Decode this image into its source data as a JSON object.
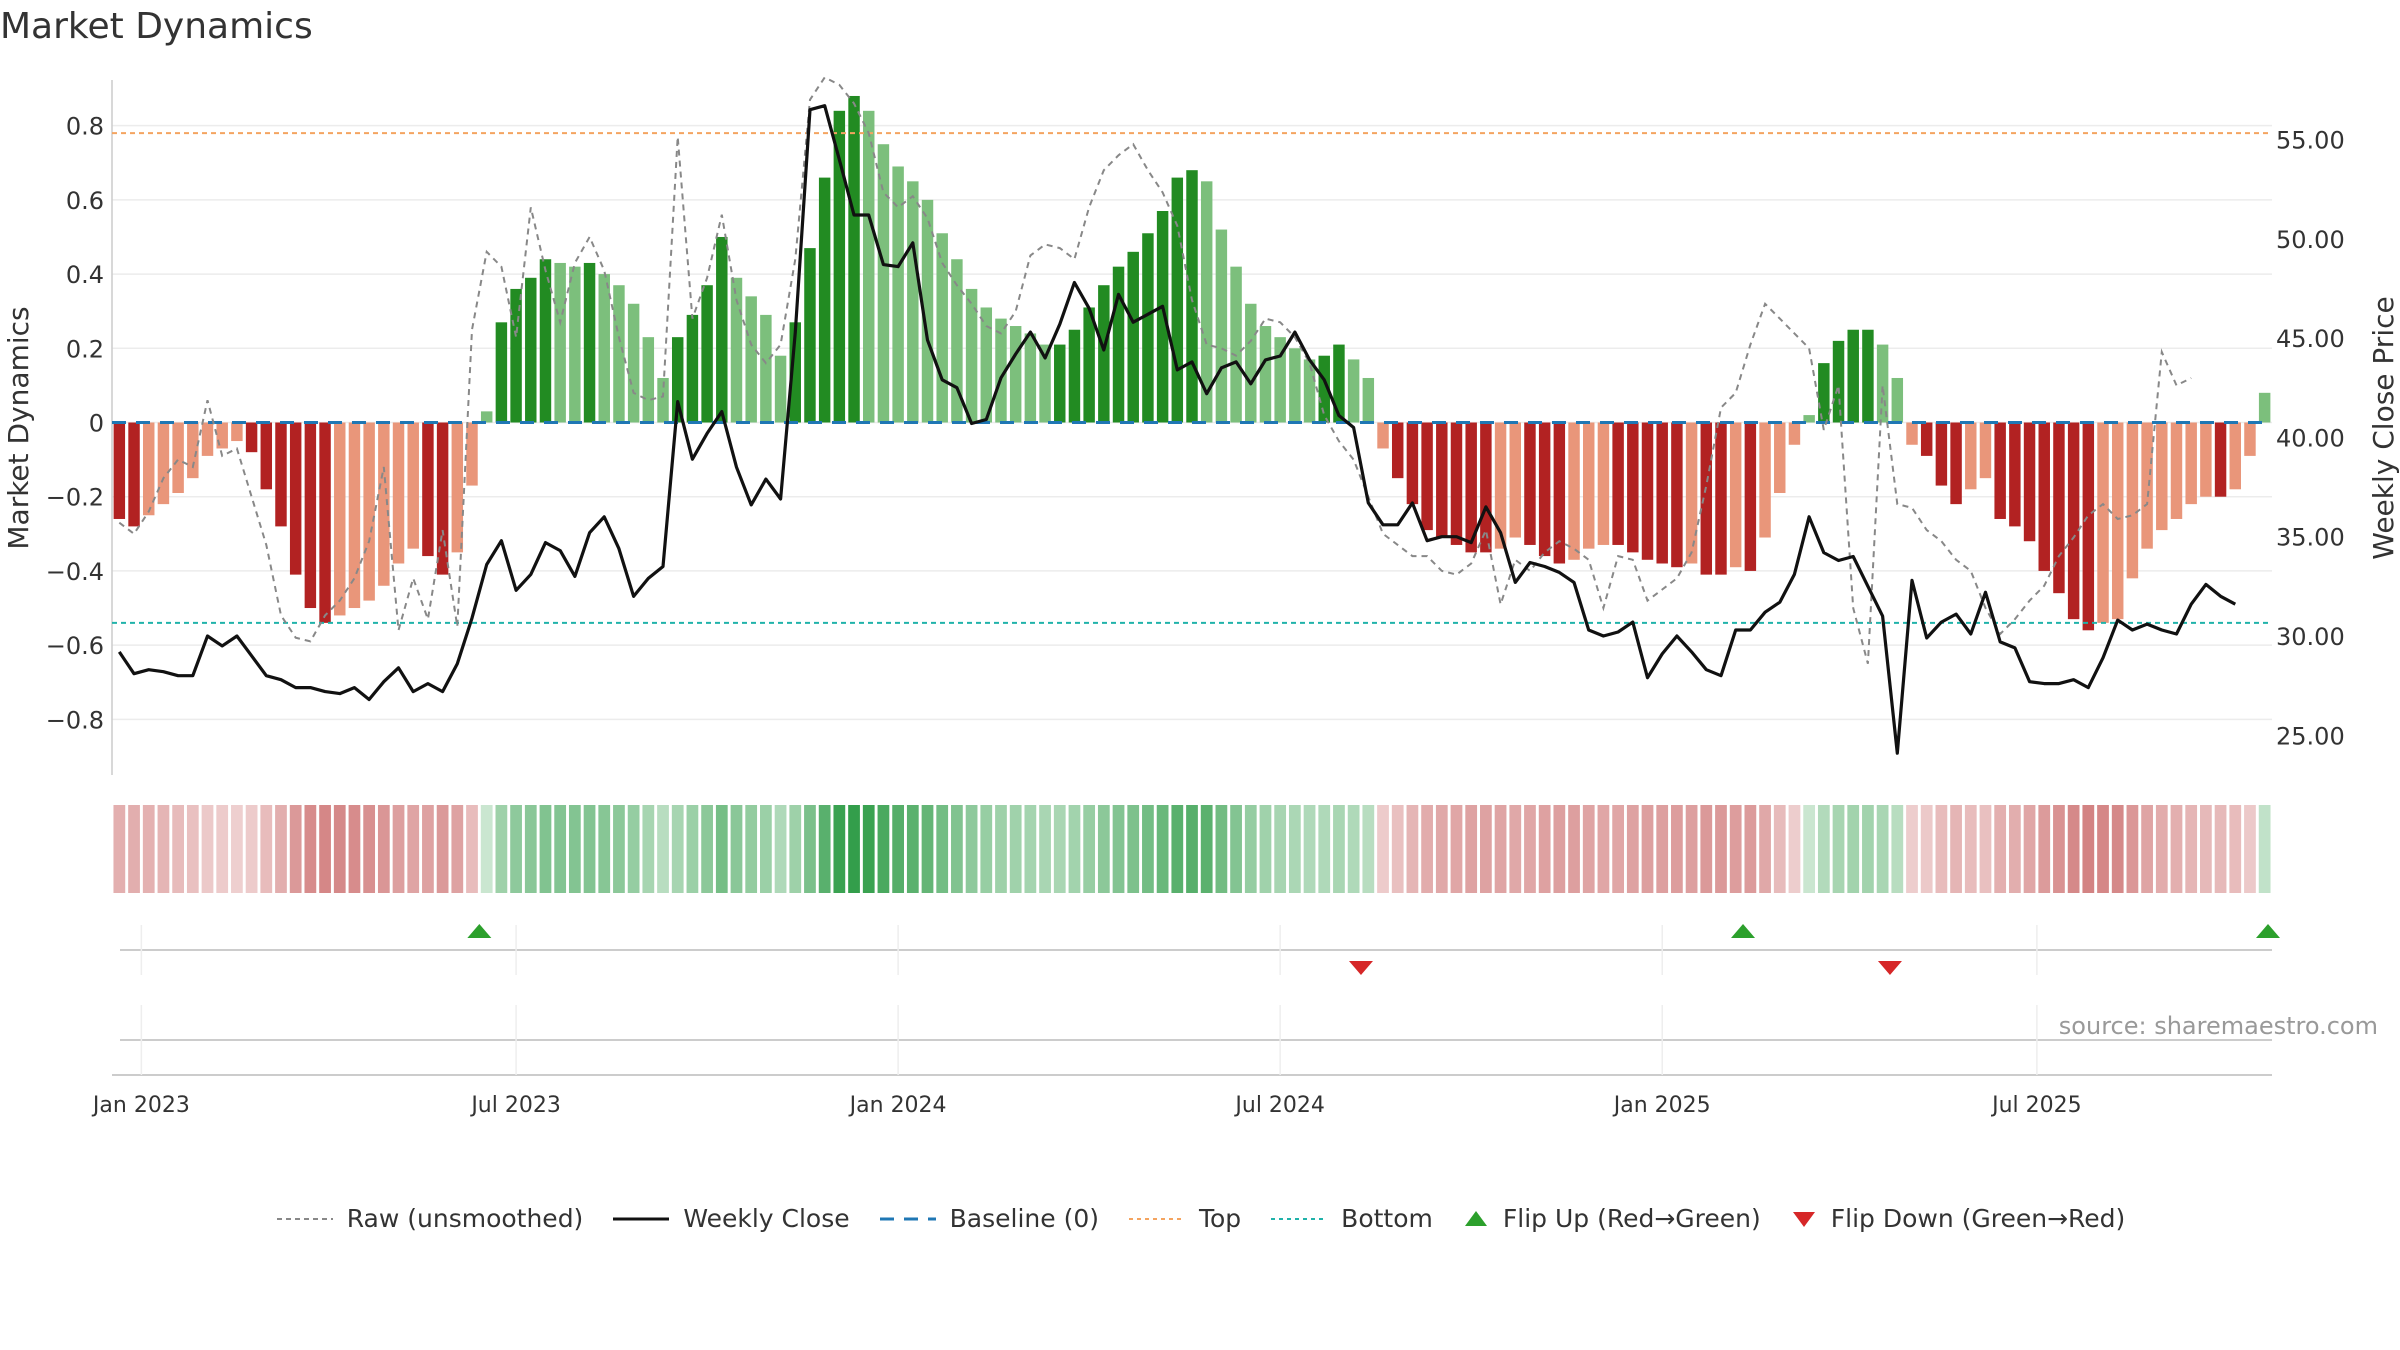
{
  "title": "Market Dynamics",
  "source": "source: sharemaestro.com",
  "colors": {
    "strong_green": "#228B22",
    "light_green": "#7CBF7C",
    "strong_red": "#B22222",
    "light_red": "#E9967A",
    "raw_line": "#888888",
    "close_line": "#111111",
    "baseline": "#1f77b4",
    "top_line": "#F4A460",
    "bottom_line": "#20B2AA",
    "flip_up": "#2ca02c",
    "flip_down": "#d62728"
  },
  "legend": {
    "raw": "Raw (unsmoothed)",
    "close": "Weekly Close",
    "baseline": "Baseline (0)",
    "top": "Top",
    "bottom": "Bottom",
    "flip_up": "Flip Up (Red→Green)",
    "flip_down": "Flip Down (Green→Red)"
  },
  "chart_data": {
    "type": "bar",
    "ylabel": "Market Dynamics",
    "y2label": "Weekly Close Price",
    "ylim": [
      -0.95,
      0.95
    ],
    "y2lim": [
      23.0,
      58.5
    ],
    "yticks": [
      "0.8",
      "0.6",
      "0.4",
      "0.2",
      "0",
      "−0.2",
      "−0.4",
      "−0.6",
      "−0.8"
    ],
    "ytick_values": [
      0.8,
      0.6,
      0.4,
      0.2,
      0,
      -0.2,
      -0.4,
      -0.6,
      -0.8
    ],
    "y2ticks": [
      "55.00",
      "50.00",
      "45.00",
      "40.00",
      "35.00",
      "30.00",
      "25.00"
    ],
    "y2tick_values": [
      55,
      50,
      45,
      40,
      35,
      30,
      25
    ],
    "xticks": [
      "Jan 2023",
      "Jul 2023",
      "Jan 2024",
      "Jul 2024",
      "Jan 2025",
      "Jul 2025"
    ],
    "xtick_weeks": [
      2,
      27.5,
      53.5,
      79.5,
      105.5,
      131
    ],
    "top": 0.78,
    "bottom": -0.54,
    "baseline": 0,
    "start_date": "2023-01-02",
    "weekly_values": [
      -0.26,
      -0.28,
      -0.25,
      -0.22,
      -0.19,
      -0.15,
      -0.09,
      -0.07,
      -0.05,
      -0.08,
      -0.18,
      -0.28,
      -0.41,
      -0.5,
      -0.54,
      -0.52,
      -0.5,
      -0.48,
      -0.44,
      -0.38,
      -0.34,
      -0.36,
      -0.41,
      -0.35,
      -0.17,
      0.03,
      0.27,
      0.36,
      0.39,
      0.44,
      0.43,
      0.42,
      0.43,
      0.4,
      0.37,
      0.32,
      0.23,
      0.12,
      0.23,
      0.29,
      0.37,
      0.5,
      0.39,
      0.34,
      0.29,
      0.18,
      0.27,
      0.47,
      0.66,
      0.84,
      0.88,
      0.84,
      0.75,
      0.69,
      0.65,
      0.6,
      0.51,
      0.44,
      0.36,
      0.31,
      0.28,
      0.26,
      0.24,
      0.21,
      0.21,
      0.25,
      0.31,
      0.37,
      0.42,
      0.46,
      0.51,
      0.57,
      0.66,
      0.68,
      0.65,
      0.52,
      0.42,
      0.32,
      0.26,
      0.23,
      0.2,
      0.17,
      0.18,
      0.21,
      0.17,
      0.12,
      -0.07,
      -0.15,
      -0.22,
      -0.29,
      -0.31,
      -0.33,
      -0.35,
      -0.35,
      -0.34,
      -0.31,
      -0.33,
      -0.36,
      -0.38,
      -0.37,
      -0.34,
      -0.33,
      -0.33,
      -0.35,
      -0.37,
      -0.38,
      -0.39,
      -0.38,
      -0.41,
      -0.41,
      -0.39,
      -0.4,
      -0.31,
      -0.19,
      -0.06,
      0.02,
      0.16,
      0.22,
      0.25,
      0.25,
      0.21,
      0.12,
      -0.06,
      -0.09,
      -0.17,
      -0.22,
      -0.18,
      -0.15,
      -0.26,
      -0.28,
      -0.32,
      -0.4,
      -0.46,
      -0.53,
      -0.56,
      -0.54,
      -0.53,
      -0.42,
      -0.34,
      -0.29,
      -0.26,
      -0.22,
      -0.2,
      -0.2,
      -0.18,
      -0.09,
      0.08
    ],
    "raw_values": [
      -0.27,
      -0.3,
      -0.24,
      -0.15,
      -0.1,
      -0.12,
      0.06,
      -0.09,
      -0.07,
      -0.2,
      -0.33,
      -0.52,
      -0.58,
      -0.59,
      -0.52,
      -0.48,
      -0.42,
      -0.32,
      -0.12,
      -0.56,
      -0.42,
      -0.53,
      -0.29,
      -0.55,
      0.25,
      0.46,
      0.42,
      0.23,
      0.58,
      0.41,
      0.27,
      0.43,
      0.5,
      0.41,
      0.23,
      0.08,
      0.06,
      0.07,
      0.77,
      0.28,
      0.39,
      0.56,
      0.33,
      0.21,
      0.16,
      0.21,
      0.44,
      0.87,
      0.93,
      0.91,
      0.86,
      0.78,
      0.62,
      0.58,
      0.61,
      0.55,
      0.43,
      0.37,
      0.32,
      0.26,
      0.24,
      0.3,
      0.45,
      0.48,
      0.47,
      0.44,
      0.58,
      0.68,
      0.72,
      0.75,
      0.68,
      0.62,
      0.53,
      0.33,
      0.21,
      0.2,
      0.18,
      0.22,
      0.28,
      0.27,
      0.23,
      0.16,
      0.02,
      -0.05,
      -0.1,
      -0.2,
      -0.3,
      -0.33,
      -0.36,
      -0.36,
      -0.4,
      -0.41,
      -0.38,
      -0.29,
      -0.49,
      -0.37,
      -0.4,
      -0.35,
      -0.32,
      -0.34,
      -0.37,
      -0.5,
      -0.36,
      -0.37,
      -0.48,
      -0.45,
      -0.42,
      -0.35,
      -0.17,
      0.04,
      0.08,
      0.21,
      0.32,
      0.28,
      0.24,
      0.2,
      -0.02,
      0.1,
      -0.5,
      -0.65,
      0.1,
      -0.22,
      -0.23,
      -0.29,
      -0.32,
      -0.37,
      -0.4,
      -0.5,
      -0.57,
      -0.53,
      -0.48,
      -0.44,
      -0.36,
      -0.31,
      -0.25,
      -0.22,
      -0.26,
      -0.25,
      -0.22,
      0.19,
      0.1,
      0.12
    ],
    "close_values": [
      29.2,
      28.1,
      28.3,
      28.2,
      28.0,
      28.0,
      30.0,
      29.5,
      30.0,
      29.0,
      28.0,
      27.8,
      27.4,
      27.4,
      27.2,
      27.1,
      27.4,
      26.8,
      27.7,
      28.4,
      27.2,
      27.6,
      27.2,
      28.6,
      30.9,
      33.6,
      34.8,
      32.3,
      33.1,
      34.7,
      34.3,
      33.0,
      35.2,
      36.0,
      34.4,
      32.0,
      32.9,
      33.5,
      41.8,
      38.9,
      40.2,
      41.3,
      38.5,
      36.6,
      37.9,
      36.9,
      45.3,
      56.5,
      56.7,
      54.0,
      51.2,
      51.2,
      48.7,
      48.6,
      49.8,
      44.9,
      42.9,
      42.5,
      40.7,
      40.9,
      43.0,
      44.2,
      45.3,
      44.0,
      45.7,
      47.8,
      46.5,
      44.4,
      47.2,
      45.8,
      46.2,
      46.6,
      43.4,
      43.8,
      42.2,
      43.5,
      43.8,
      42.7,
      43.9,
      44.1,
      45.3,
      43.9,
      42.9,
      41.1,
      40.5,
      36.7,
      35.6,
      35.6,
      36.7,
      34.8,
      35.0,
      35.0,
      34.7,
      36.5,
      35.2,
      32.7,
      33.7,
      33.5,
      33.2,
      32.7,
      30.3,
      30.0,
      30.2,
      30.7,
      27.9,
      29.1,
      30.0,
      29.2,
      28.3,
      28.0,
      30.3,
      30.3,
      31.2,
      31.7,
      33.1,
      36.0,
      34.2,
      33.8,
      34.0,
      32.5,
      31.0,
      24.1,
      32.8,
      29.9,
      30.7,
      31.1,
      30.1,
      32.2,
      29.7,
      29.4,
      27.7,
      27.6,
      27.6,
      27.8,
      27.4,
      28.9,
      30.8,
      30.3,
      30.6,
      30.3,
      30.1,
      31.6,
      32.6,
      32.0,
      31.6
    ],
    "flip_up_weeks": [
      25,
      111,
      148
    ],
    "flip_down_weeks": [
      85,
      121
    ]
  }
}
